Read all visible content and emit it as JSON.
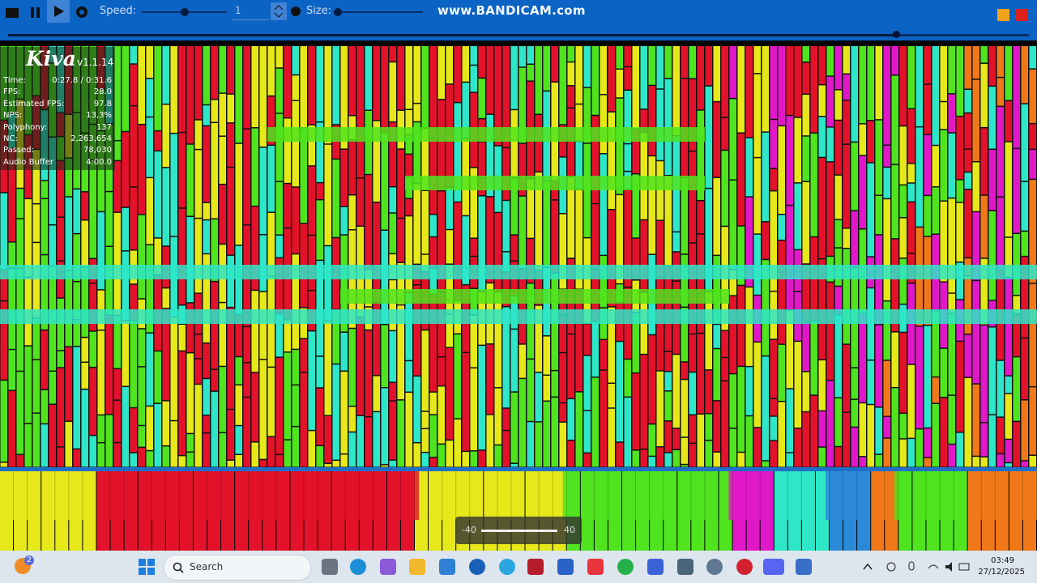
{
  "toolbar": {
    "speed_label": "Speed:",
    "speed_value": "1",
    "size_label": "Size:"
  },
  "watermark": "www.BANDICAM.com",
  "overlay": {
    "logo": "Kiva",
    "version": "v1.1.14",
    "stats": [
      {
        "label": "Time:",
        "value": "0:27.8 / 0:31.6"
      },
      {
        "label": "FPS:",
        "value": "28.0"
      },
      {
        "label": "Estimated FPS:",
        "value": "97.8"
      },
      {
        "label": "NPS:",
        "value": "13,3%"
      },
      {
        "label": "Polyphony:",
        "value": "137"
      },
      {
        "label": "NC:",
        "value": "2,263,654"
      },
      {
        "label": "Passed:",
        "value": "78,030"
      },
      {
        "label": "Audio Buffer",
        "value": "4:00.0"
      }
    ]
  },
  "volume": {
    "min": "-40",
    "max": "40"
  },
  "taskbar": {
    "badge": "2",
    "search": "Search",
    "time": "03:49",
    "date": "27/12/2025"
  }
}
